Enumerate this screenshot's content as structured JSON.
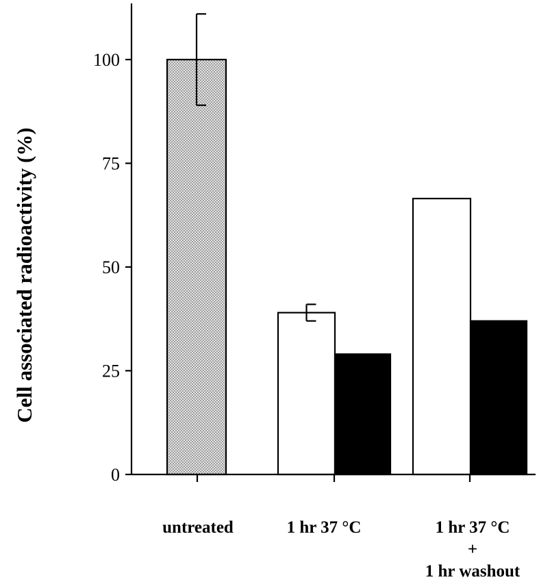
{
  "chart_data": {
    "type": "bar",
    "ylabel": "Cell associated radioactivity (%)",
    "ylim": [
      0,
      113
    ],
    "yticks": [
      0,
      25,
      50,
      75,
      100
    ],
    "grid": false,
    "categories": [
      {
        "label_lines": [
          "untreated"
        ]
      },
      {
        "label_lines": [
          "1 hr 37  °C"
        ]
      },
      {
        "label_lines": [
          "1 hr 37  °C",
          "+",
          "1 hr washout"
        ]
      }
    ],
    "series": [
      {
        "fill": "stippled",
        "values": [
          100,
          null,
          null
        ],
        "error": [
          11,
          null,
          null
        ]
      },
      {
        "fill": "#ffffff",
        "values": [
          null,
          39,
          66.5
        ],
        "error": [
          null,
          2,
          null
        ]
      },
      {
        "fill": "#000000",
        "values": [
          null,
          29,
          37
        ],
        "error": [
          null,
          null,
          null
        ]
      }
    ],
    "colors": {
      "axis": "#000000",
      "stipple_bg": "#e6e6e6",
      "stipple_dot": "#444444"
    }
  }
}
